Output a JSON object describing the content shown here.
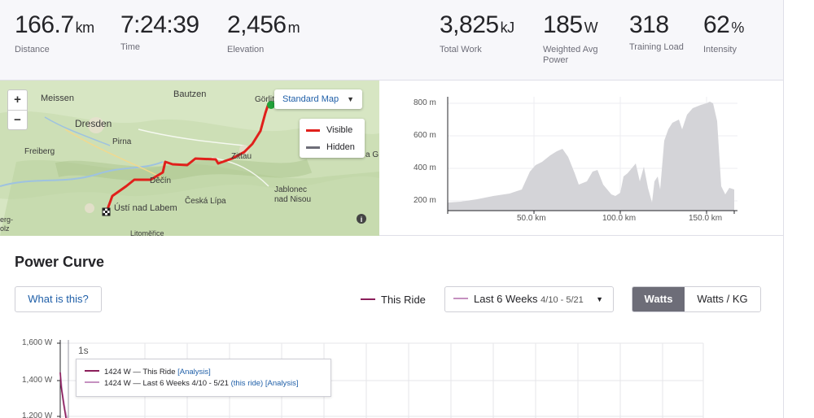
{
  "stats_left": [
    {
      "value": "166.7",
      "unit": "km",
      "label": "Distance"
    },
    {
      "value": "7:24:39",
      "unit": "",
      "label": "Time"
    },
    {
      "value": "2,456",
      "unit": "m",
      "label": "Elevation"
    }
  ],
  "stats_right": [
    {
      "value": "3,825",
      "unit": "kJ",
      "label": "Total Work"
    },
    {
      "value": "185",
      "unit": "W",
      "label": "Weighted Avg Power"
    },
    {
      "value": "318",
      "unit": "",
      "label": "Training Load"
    },
    {
      "value": "62",
      "unit": "%",
      "label": "Intensity"
    }
  ],
  "map": {
    "zoom_in": "+",
    "zoom_out": "−",
    "map_type": "Standard Map",
    "legend": {
      "visible": "Visible",
      "hidden": "Hidden"
    },
    "route_color": "#e0201b",
    "places": [
      "Meissen",
      "Bautzen",
      "Görlit",
      "Dresden",
      "Pirna",
      "Freiberg",
      "Zittau",
      "Děčín",
      "Česká Lípa",
      "Jablonec nad Nisou",
      "Ústí nad Labem",
      "erg-olz",
      "Litoměřice",
      "a G"
    ]
  },
  "elevation": {
    "y_labels": [
      "800 m",
      "600 m",
      "400 m",
      "200 m"
    ],
    "x_labels": [
      "50.0 km",
      "100.0 km",
      "150.0 km"
    ],
    "fill_color": "#d4d4d8"
  },
  "power_curve": {
    "title": "Power Curve",
    "what_button": "What is this?",
    "this_ride": "This Ride",
    "period_label": "Last 6 Weeks",
    "period_range": "4/10 - 5/21",
    "unit_on": "Watts",
    "unit_off": "Watts / KG",
    "y_labels": [
      "1,600 W",
      "1,400 W",
      "1,200 W"
    ],
    "cursor_label": "1s",
    "this_ride_color": "#8b1e5a",
    "last6_color": "#c591c0",
    "tooltip": {
      "row1_value": "1424 W — This Ride",
      "row1_link": "[Analysis]",
      "row2_value": "1424 W — Last 6 Weeks 4/10 - 5/21",
      "row2_link1": "(this ride)",
      "row2_link2": "[Analysis]"
    }
  }
}
